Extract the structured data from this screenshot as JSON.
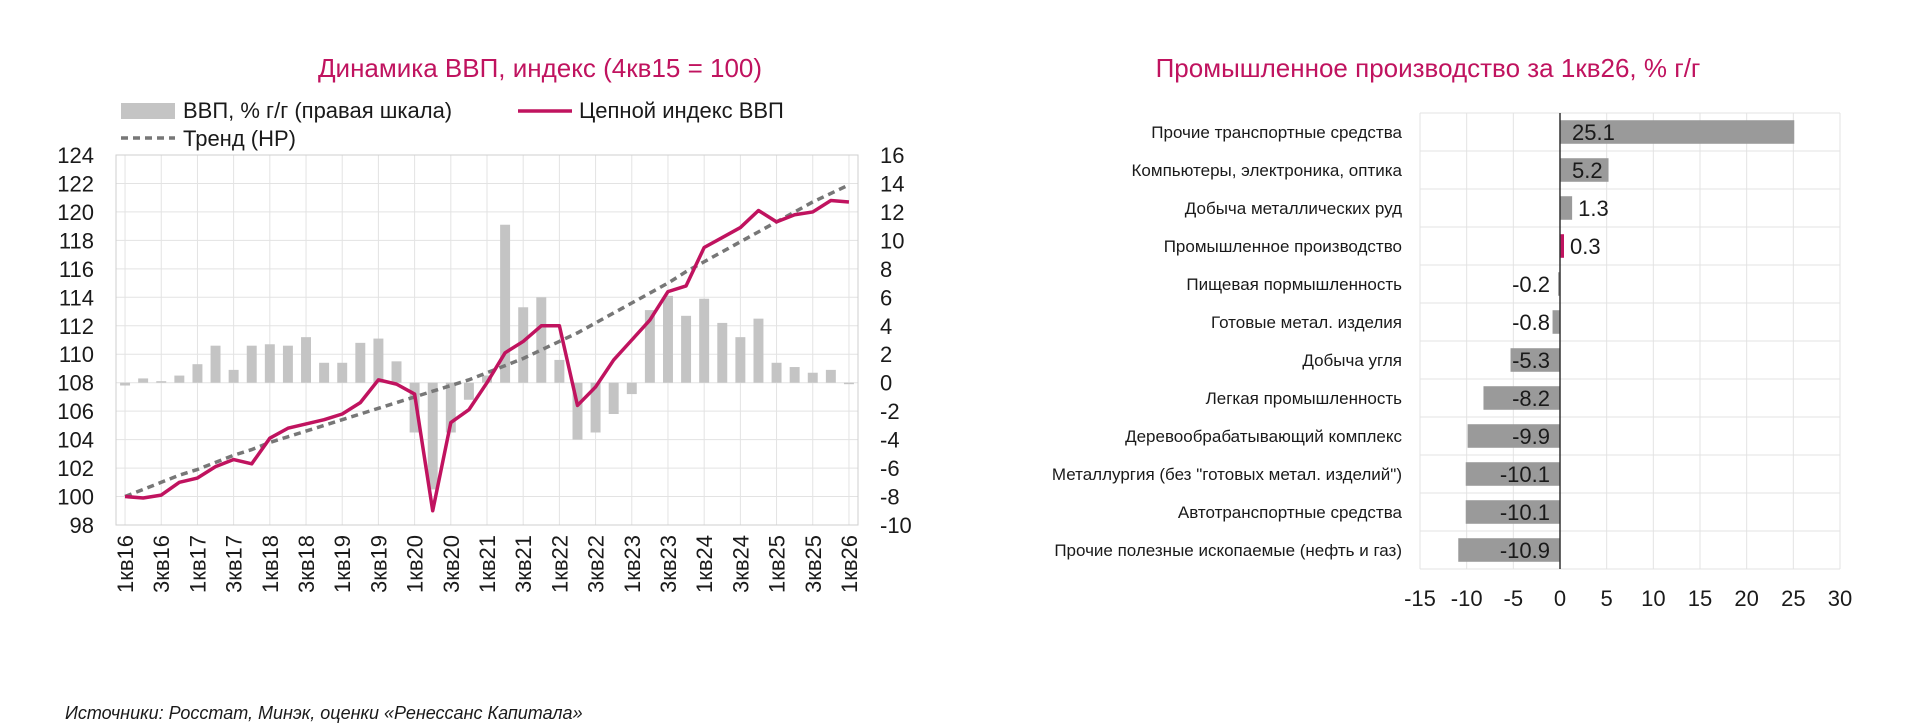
{
  "source_note": "Источники: Росстат, Минэк, оценки «Ренессанс Капитала»",
  "colors": {
    "accent": "#c0135f",
    "bar_light": "#c4c4c4",
    "bar_dark": "#9a9a9a",
    "trend": "#777777"
  },
  "chart_data": [
    {
      "type": "line",
      "title": "Динамика ВВП, индекс (4кв15 = 100)",
      "legend": {
        "bars": "ВВП, % г/г (правая шкала)",
        "line": "Цепной индекс ВВП",
        "trend": "Тренд (HP)"
      },
      "x": [
        "1кв16",
        "2кв16",
        "3кв16",
        "4кв16",
        "1кв17",
        "2кв17",
        "3кв17",
        "4кв17",
        "1кв18",
        "2кв18",
        "3кв18",
        "4кв18",
        "1кв19",
        "2кв19",
        "3кв19",
        "4кв19",
        "1кв20",
        "2кв20",
        "3кв20",
        "4кв20",
        "1кв21",
        "2кв21",
        "3кв21",
        "4кв21",
        "1кв22",
        "2кв22",
        "3кв22",
        "4кв22",
        "1кв23",
        "2кв23",
        "3кв23",
        "4кв23",
        "1кв24",
        "2кв24",
        "3кв24",
        "4кв24",
        "1кв25",
        "2кв25",
        "3кв25",
        "4кв25",
        "1кв26"
      ],
      "x_tick_labels": [
        "1кв16",
        "3кв16",
        "1кв17",
        "3кв17",
        "1кв18",
        "3кв18",
        "1кв19",
        "3кв19",
        "1кв20",
        "3кв20",
        "1кв21",
        "3кв21",
        "1кв22",
        "3кв22",
        "1кв23",
        "3кв23",
        "1кв24",
        "3кв24",
        "1кв25",
        "3кв25",
        "1кв26"
      ],
      "ylim_left": [
        98,
        124
      ],
      "y_ticks_left": [
        98,
        100,
        102,
        104,
        106,
        108,
        110,
        112,
        114,
        116,
        118,
        120,
        122,
        124
      ],
      "ylim_right": [
        -10,
        16
      ],
      "y_ticks_right": [
        -10,
        -8,
        -6,
        -4,
        -2,
        0,
        2,
        4,
        6,
        8,
        10,
        12,
        14,
        16
      ],
      "series": [
        {
          "name": "ВВП, % г/г (правая шкала)",
          "type": "bar",
          "axis": "right",
          "values": [
            -0.2,
            0.3,
            0,
            0.5,
            1.3,
            2.6,
            0.9,
            2.6,
            2.7,
            2.6,
            3.2,
            1.4,
            1.4,
            2.8,
            3.1,
            1.5,
            -3.5,
            -7.5,
            -3.5,
            -1.2,
            0.5,
            11.1,
            5.3,
            6,
            1.6,
            -4,
            -3.5,
            -2.2,
            -0.8,
            5.1,
            6.1,
            4.7,
            5.9,
            4.2,
            3.2,
            4.5,
            1.4,
            1.1,
            0.7,
            0.9,
            -0.1
          ]
        },
        {
          "name": "Цепной индекс ВВП",
          "type": "line",
          "axis": "left",
          "values": [
            100,
            99.9,
            100.1,
            101,
            101.3,
            102.1,
            102.6,
            102.3,
            104.1,
            104.8,
            105.1,
            105.4,
            105.8,
            106.6,
            108.2,
            107.9,
            107.2,
            99,
            105.2,
            106.1,
            108,
            110.1,
            110.9,
            112,
            112,
            106.4,
            107.7,
            109.6,
            111,
            112.4,
            114.4,
            114.8,
            117.5,
            118.2,
            118.9,
            120.1,
            119.3,
            119.8,
            120,
            120.8,
            120.7
          ]
        },
        {
          "name": "Тренд (HP)",
          "type": "line",
          "style": "dashed",
          "axis": "left",
          "values": [
            100,
            100.5,
            101,
            101.5,
            101.9,
            102.4,
            102.9,
            103.3,
            103.8,
            104.2,
            104.6,
            105,
            105.4,
            105.8,
            106.2,
            106.6,
            107,
            107.4,
            107.8,
            108.2,
            108.7,
            109.2,
            109.7,
            110.3,
            110.9,
            111.5,
            112.2,
            112.9,
            113.6,
            114.3,
            115,
            115.8,
            116.5,
            117.2,
            117.9,
            118.6,
            119.3,
            120,
            120.7,
            121.3,
            121.9
          ]
        }
      ]
    },
    {
      "type": "bar",
      "orientation": "horizontal",
      "title": "Промышленное производство за 1кв26, % г/г",
      "categories": [
        "Прочие транспортные средства",
        "Компьютеры, электроника, оптика",
        "Добыча металлических руд",
        "Промышленное производство",
        "Пищевая пормышленность",
        "Готовые метал. изделия",
        "Добыча угля",
        "Легкая промышленность",
        "Деревообрабатывающий комплекс",
        "Металлургия (без \"готовых метал. изделий\")",
        "Автотранспортные средства",
        "Прочие полезные ископаемые (нефть и газ)"
      ],
      "values": [
        25.1,
        5.2,
        1.3,
        0.3,
        -0.2,
        -0.8,
        -5.3,
        -8.2,
        -9.9,
        -10.1,
        -10.1,
        -10.9
      ],
      "value_labels": [
        "25.1",
        "5.2",
        "1.3",
        "0.3",
        "-0.2",
        "-0.8",
        "-5.3",
        "-8.2",
        "-9.9",
        "-10.1",
        "-10.1",
        "-10.9"
      ],
      "highlight_index": 3,
      "xlim": [
        -15,
        30
      ],
      "x_ticks": [
        -15,
        -10,
        -5,
        0,
        5,
        10,
        15,
        20,
        25,
        30
      ]
    }
  ]
}
